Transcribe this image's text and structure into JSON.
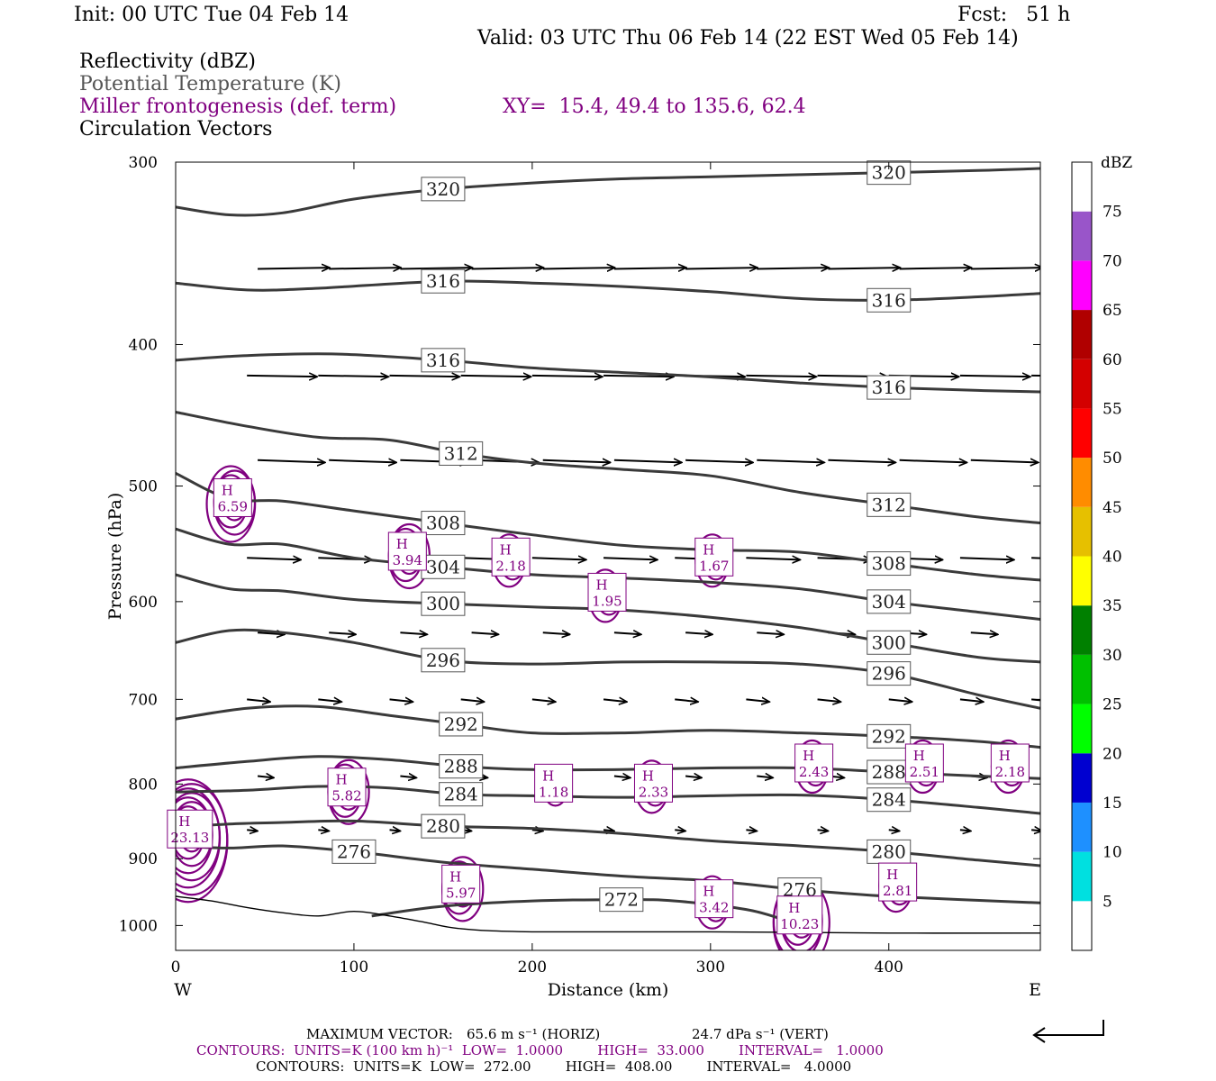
{
  "header": {
    "init": "Init: 00 UTC Tue 04 Feb 14",
    "fcst": "Fcst:   51 h",
    "valid": "Valid: 03 UTC Thu 06 Feb 14 (22 EST Wed 05 Feb 14)",
    "field1": "Reflectivity (dBZ)",
    "field2": "Potential Temperature (K)",
    "field3": "Miller frontogenesis (def. term)",
    "xy": "XY=  15.4, 49.4 to 135.6, 62.4",
    "field4": "Circulation Vectors"
  },
  "colors": {
    "theta": "#3a3a3a",
    "fronto": "#800080",
    "field2_text": "#555555",
    "field3_text": "#800080"
  },
  "footer": {
    "max_vector_label": "MAXIMUM VECTOR:",
    "max_vector_horiz": "65.6 m s⁻¹ (HORIZ)",
    "max_vector_vert": "24.7 dPa s⁻¹ (VERT)",
    "contours_fronto": "CONTOURS:  UNITS=K (100 km h)⁻¹  LOW=  1.0000        HIGH=  33.000        INTERVAL=   1.0000",
    "contours_theta": "CONTOURS:  UNITS=K  LOW=  272.00        HIGH=  408.00        INTERVAL=   4.0000"
  },
  "chart_data": {
    "type": "line",
    "description_free": true,
    "xlabel": "Distance (km)",
    "ylabel": "Pressure (hPa)",
    "x_ticks": [
      0,
      100,
      200,
      300,
      400
    ],
    "y_ticks": [
      300,
      400,
      500,
      600,
      700,
      800,
      900,
      1000
    ],
    "xlim": [
      0,
      485
    ],
    "ylim": [
      300,
      1040
    ],
    "y_log": true,
    "x_end_labels": {
      "left": "W",
      "right": "E"
    },
    "colorbar": {
      "unit": "dBZ",
      "levels": [
        5,
        10,
        15,
        20,
        25,
        30,
        35,
        40,
        45,
        50,
        55,
        60,
        65,
        70,
        75
      ],
      "colors": [
        "#00e0e0",
        "#1e90ff",
        "#0000d0",
        "#00ff00",
        "#00c000",
        "#008000",
        "#ffff00",
        "#e6c000",
        "#ff8c00",
        "#ff0000",
        "#d40000",
        "#b00000",
        "#ff00ff",
        "#9955c9",
        "#ffffff"
      ]
    },
    "theta_contours": [
      {
        "label": "320",
        "points": [
          [
            0,
            322
          ],
          [
            30,
            326
          ],
          [
            60,
            325
          ],
          [
            100,
            318
          ],
          [
            150,
            313
          ],
          [
            200,
            310
          ],
          [
            250,
            308
          ],
          [
            300,
            307
          ],
          [
            350,
            306
          ],
          [
            400,
            305
          ],
          [
            450,
            304
          ],
          [
            485,
            303
          ]
        ]
      },
      {
        "label": "316",
        "points": [
          [
            0,
            363
          ],
          [
            40,
            367
          ],
          [
            80,
            366
          ],
          [
            150,
            362
          ],
          [
            200,
            363
          ],
          [
            250,
            365
          ],
          [
            300,
            368
          ],
          [
            350,
            372
          ],
          [
            400,
            373
          ],
          [
            450,
            371
          ],
          [
            485,
            369
          ]
        ]
      },
      {
        "label": "316",
        "points": [
          [
            0,
            410
          ],
          [
            40,
            407
          ],
          [
            90,
            406
          ],
          [
            150,
            410
          ],
          [
            200,
            415
          ],
          [
            250,
            418
          ],
          [
            300,
            421
          ],
          [
            350,
            425
          ],
          [
            400,
            428
          ],
          [
            450,
            430
          ],
          [
            485,
            431
          ]
        ]
      },
      {
        "label": "312",
        "points": [
          [
            0,
            445
          ],
          [
            40,
            455
          ],
          [
            80,
            463
          ],
          [
            120,
            465
          ],
          [
            160,
            475
          ],
          [
            200,
            482
          ],
          [
            250,
            487
          ],
          [
            300,
            492
          ],
          [
            350,
            505
          ],
          [
            400,
            515
          ],
          [
            450,
            525
          ],
          [
            485,
            530
          ]
        ]
      },
      {
        "label": "308",
        "points": [
          [
            0,
            490
          ],
          [
            30,
            510
          ],
          [
            60,
            512
          ],
          [
            100,
            520
          ],
          [
            150,
            530
          ],
          [
            200,
            540
          ],
          [
            250,
            549
          ],
          [
            300,
            553
          ],
          [
            350,
            555
          ],
          [
            400,
            565
          ],
          [
            450,
            575
          ],
          [
            485,
            580
          ]
        ]
      },
      {
        "label": "304",
        "points": [
          [
            0,
            535
          ],
          [
            30,
            548
          ],
          [
            60,
            548
          ],
          [
            100,
            560
          ],
          [
            150,
            568
          ],
          [
            200,
            575
          ],
          [
            250,
            578
          ],
          [
            300,
            582
          ],
          [
            350,
            588
          ],
          [
            400,
            600
          ],
          [
            450,
            610
          ],
          [
            485,
            617
          ]
        ]
      },
      {
        "label": "300",
        "points": [
          [
            0,
            575
          ],
          [
            30,
            588
          ],
          [
            60,
            590
          ],
          [
            100,
            598
          ],
          [
            150,
            602
          ],
          [
            200,
            605
          ],
          [
            250,
            608
          ],
          [
            300,
            615
          ],
          [
            350,
            625
          ],
          [
            400,
            640
          ],
          [
            450,
            655
          ],
          [
            485,
            660
          ]
        ]
      },
      {
        "label": "296",
        "points": [
          [
            0,
            640
          ],
          [
            30,
            628
          ],
          [
            60,
            630
          ],
          [
            100,
            640
          ],
          [
            150,
            658
          ],
          [
            200,
            662
          ],
          [
            250,
            660
          ],
          [
            300,
            660
          ],
          [
            350,
            662
          ],
          [
            400,
            672
          ],
          [
            450,
            695
          ],
          [
            485,
            710
          ]
        ]
      },
      {
        "label": "292",
        "points": [
          [
            0,
            722
          ],
          [
            40,
            710
          ],
          [
            80,
            708
          ],
          [
            120,
            718
          ],
          [
            160,
            728
          ],
          [
            200,
            738
          ],
          [
            250,
            738
          ],
          [
            300,
            735
          ],
          [
            350,
            738
          ],
          [
            400,
            742
          ],
          [
            450,
            748
          ],
          [
            485,
            755
          ]
        ]
      },
      {
        "label": "288",
        "points": [
          [
            0,
            780
          ],
          [
            40,
            772
          ],
          [
            80,
            766
          ],
          [
            120,
            770
          ],
          [
            160,
            778
          ],
          [
            200,
            782
          ],
          [
            250,
            782
          ],
          [
            300,
            780
          ],
          [
            350,
            780
          ],
          [
            400,
            785
          ],
          [
            450,
            790
          ],
          [
            485,
            793
          ]
        ]
      },
      {
        "label": "284",
        "points": [
          [
            0,
            810
          ],
          [
            40,
            808
          ],
          [
            80,
            803
          ],
          [
            120,
            805
          ],
          [
            160,
            813
          ],
          [
            200,
            815
          ],
          [
            250,
            817
          ],
          [
            300,
            815
          ],
          [
            350,
            814
          ],
          [
            400,
            820
          ],
          [
            450,
            830
          ],
          [
            485,
            838
          ]
        ]
      },
      {
        "label": "280",
        "points": [
          [
            0,
            857
          ],
          [
            30,
            852
          ],
          [
            60,
            850
          ],
          [
            100,
            848
          ],
          [
            150,
            855
          ],
          [
            200,
            858
          ],
          [
            250,
            865
          ],
          [
            300,
            875
          ],
          [
            350,
            882
          ],
          [
            400,
            890
          ],
          [
            450,
            902
          ],
          [
            485,
            910
          ]
        ]
      },
      {
        "label": "276",
        "points": [
          [
            0,
            882
          ],
          [
            30,
            885
          ],
          [
            60,
            882
          ],
          [
            100,
            890
          ],
          [
            150,
            905
          ],
          [
            200,
            915
          ],
          [
            250,
            925
          ],
          [
            300,
            932
          ],
          [
            350,
            945
          ],
          [
            400,
            955
          ],
          [
            485,
            965
          ]
        ]
      },
      {
        "label": "272",
        "points": [
          [
            110,
            985
          ],
          [
            150,
            970
          ],
          [
            200,
            962
          ],
          [
            250,
            960
          ],
          [
            280,
            962
          ],
          [
            320,
            975
          ],
          [
            340,
            990
          ]
        ]
      }
    ],
    "fronto_maxima": [
      {
        "label": "6.59",
        "x": 32,
        "p": 510
      },
      {
        "label": "3.94",
        "x": 130,
        "p": 555
      },
      {
        "label": "2.18",
        "x": 188,
        "p": 560
      },
      {
        "label": "1.95",
        "x": 242,
        "p": 592
      },
      {
        "label": "1.67",
        "x": 302,
        "p": 560
      },
      {
        "label": "5.82",
        "x": 96,
        "p": 805
      },
      {
        "label": "1.18",
        "x": 212,
        "p": 800
      },
      {
        "label": "2.33",
        "x": 268,
        "p": 800
      },
      {
        "label": "2.43",
        "x": 358,
        "p": 775
      },
      {
        "label": "2.51",
        "x": 420,
        "p": 775
      },
      {
        "label": "2.18",
        "x": 468,
        "p": 775
      },
      {
        "label": "23.13",
        "x": 8,
        "p": 860
      },
      {
        "label": "5.97",
        "x": 160,
        "p": 938
      },
      {
        "label": "3.42",
        "x": 302,
        "p": 960
      },
      {
        "label": "10.23",
        "x": 350,
        "p": 985
      },
      {
        "label": "2.81",
        "x": 405,
        "p": 935
      }
    ]
  }
}
